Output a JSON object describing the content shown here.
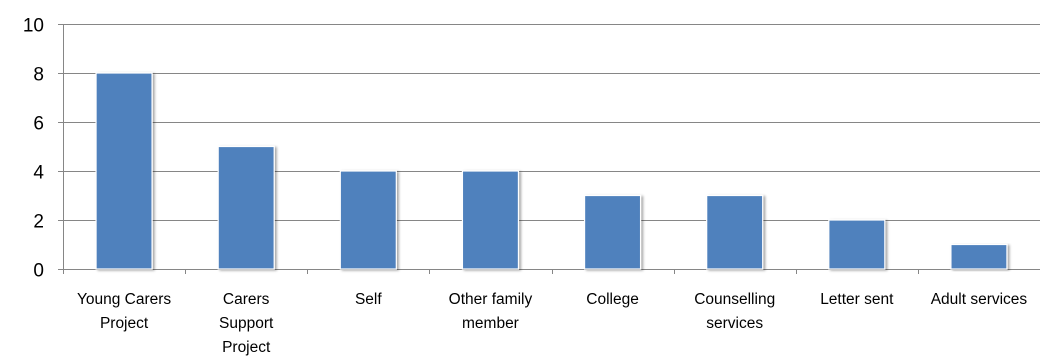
{
  "chart_data": {
    "type": "bar",
    "categories": [
      [
        "Young Carers",
        "Project"
      ],
      [
        "Carers",
        "Support",
        "Project"
      ],
      [
        "Self"
      ],
      [
        "Other family",
        "member"
      ],
      [
        "College"
      ],
      [
        "Counselling",
        "services"
      ],
      [
        "Letter sent"
      ],
      [
        "Adult services"
      ]
    ],
    "values": [
      8,
      5,
      4,
      4,
      3,
      3,
      2,
      1
    ],
    "ylim": [
      0,
      10
    ],
    "yticks": [
      0,
      2,
      4,
      6,
      8,
      10
    ],
    "grid": true,
    "bar_color": "#4f81bd",
    "grid_color": "#868686"
  }
}
